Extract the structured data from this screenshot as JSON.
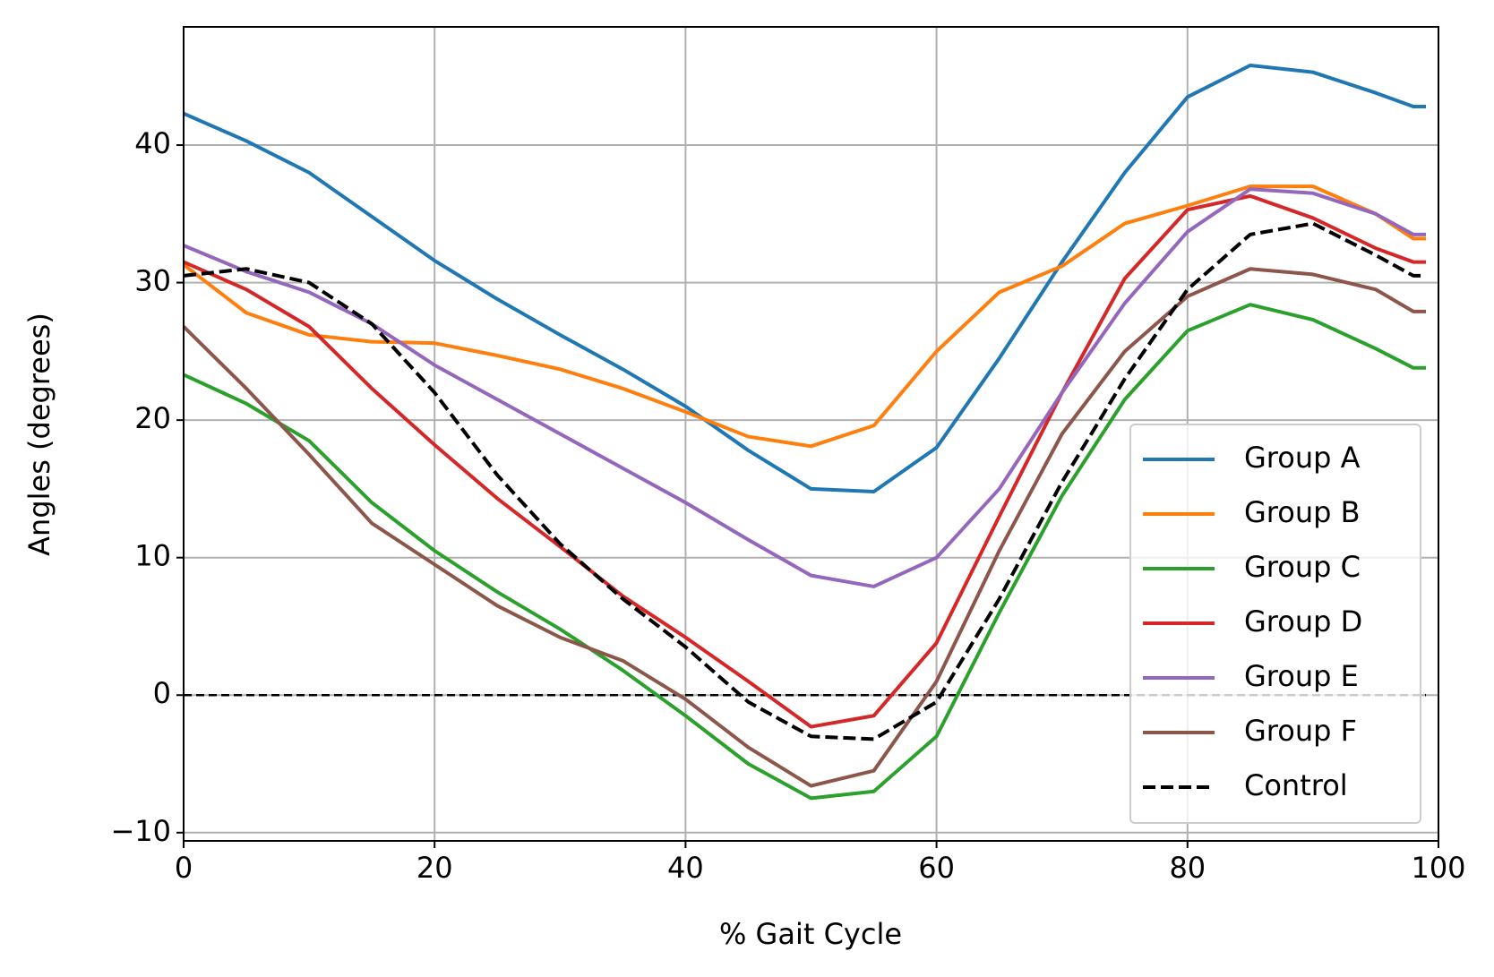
{
  "chart_data": {
    "type": "line",
    "xlabel": "% Gait Cycle",
    "ylabel": "Angles (degrees)",
    "x": [
      0,
      5,
      10,
      15,
      20,
      25,
      30,
      35,
      40,
      45,
      50,
      55,
      60,
      65,
      70,
      75,
      80,
      85,
      90,
      95,
      98,
      99
    ],
    "series": [
      {
        "name": "Group A",
        "color": "#1f77b4",
        "linestyle": "solid",
        "values": [
          42.3,
          40.3,
          38,
          34.8,
          31.6,
          28.8,
          26.2,
          23.7,
          21,
          17.8,
          15,
          14.8,
          18,
          24.5,
          31.5,
          38,
          43.5,
          45.8,
          45.3,
          43.8,
          42.8,
          42.8
        ]
      },
      {
        "name": "Group B",
        "color": "#ff7f0e",
        "linestyle": "solid",
        "values": [
          31.3,
          27.8,
          26.2,
          25.7,
          25.6,
          24.7,
          23.7,
          22.3,
          20.6,
          18.8,
          18.1,
          19.6,
          25,
          29.3,
          31.2,
          34.3,
          35.6,
          37,
          37,
          35,
          33.2,
          33.2
        ]
      },
      {
        "name": "Group C",
        "color": "#2ca02c",
        "linestyle": "solid",
        "values": [
          23.3,
          21.2,
          18.5,
          14,
          10.5,
          7.5,
          4.8,
          1.8,
          -1.5,
          -5,
          -7.5,
          -7,
          -3,
          6,
          14.5,
          21.5,
          26.5,
          28.4,
          27.3,
          25.2,
          23.8,
          23.8
        ]
      },
      {
        "name": "Group D",
        "color": "#d62728",
        "linestyle": "solid",
        "values": [
          31.5,
          29.5,
          26.8,
          22.3,
          18.2,
          14.3,
          10.8,
          7.2,
          4.2,
          1,
          -2.3,
          -1.5,
          3.8,
          13,
          22,
          30.3,
          35.3,
          36.3,
          34.7,
          32.5,
          31.5,
          31.5
        ]
      },
      {
        "name": "Group E",
        "color": "#9467bd",
        "linestyle": "solid",
        "values": [
          32.7,
          30.8,
          29.3,
          27,
          24,
          21.5,
          19,
          16.5,
          14,
          11.3,
          8.7,
          7.9,
          10,
          15,
          22,
          28.5,
          33.7,
          36.8,
          36.5,
          35,
          33.5,
          33.5
        ]
      },
      {
        "name": "Group F",
        "color": "#8c564b",
        "linestyle": "solid",
        "values": [
          26.8,
          22.3,
          17.5,
          12.5,
          9.5,
          6.5,
          4.2,
          2.5,
          -0.3,
          -3.8,
          -6.6,
          -5.5,
          1,
          10.5,
          19,
          25,
          29,
          31,
          30.6,
          29.5,
          27.9,
          27.9
        ]
      },
      {
        "name": "Control",
        "color": "#000000",
        "linestyle": "dashed",
        "values": [
          30.5,
          31,
          30,
          27,
          22,
          16,
          11,
          7,
          3.5,
          -0.5,
          -3,
          -3.2,
          -0.5,
          7,
          15.5,
          23,
          29.5,
          33.5,
          34.3,
          32,
          30.5,
          30.5
        ]
      }
    ],
    "reference_line": {
      "y": 0,
      "x": [
        0,
        99
      ],
      "color": "#000000",
      "linestyle": "dashed"
    },
    "xlim": [
      0,
      100
    ],
    "ylim": [
      -10.6,
      48.6
    ],
    "xticks": [
      0,
      20,
      40,
      60,
      80,
      100
    ],
    "yticks": [
      {
        "value": -10,
        "label": "−10"
      },
      0,
      10,
      20,
      30,
      40
    ],
    "grid": true,
    "legend": "lower right"
  }
}
